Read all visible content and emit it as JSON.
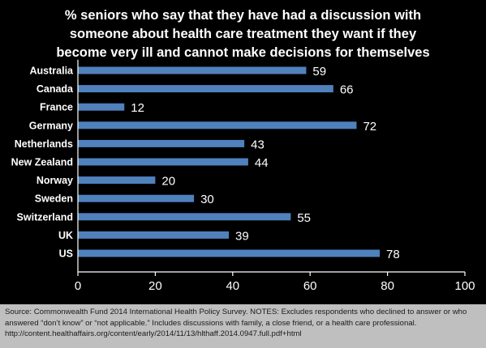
{
  "chart_data": {
    "type": "bar",
    "orientation": "horizontal",
    "title_lines": [
      "% seniors who say that they have had a discussion with",
      "someone about health care treatment they want if they",
      "become very ill and cannot make decisions for themselves"
    ],
    "categories": [
      "Australia",
      "Canada",
      "France",
      "Germany",
      "Netherlands",
      "New Zealand",
      "Norway",
      "Sweden",
      "Switzerland",
      "UK",
      "US"
    ],
    "values": [
      59,
      66,
      12,
      72,
      43,
      44,
      20,
      30,
      55,
      39,
      78
    ],
    "value_labels": [
      "59",
      "66",
      "12",
      "72",
      "43",
      "44",
      "20",
      "30",
      "55",
      "39",
      "78"
    ],
    "xlim": [
      0,
      100
    ],
    "x_ticks": [
      0,
      20,
      40,
      60,
      80,
      100
    ],
    "x_tick_labels": [
      "0",
      "20",
      "40",
      "60",
      "80",
      "100"
    ],
    "grid": false,
    "bar_color": "#4f81bd"
  },
  "footer": {
    "source_text": "Source: Commonwealth Fund 2014 International Health Policy Survey. NOTES: Excludes respondents who declined to answer or who answered “don’t know” or “not applicable.” Includes discussions with  family, a close friend, or a health care professional. http://content.healthaffairs.org/content/early/2014/11/13/hlthaff.2014.0947.full.pdf+html"
  },
  "colors": {
    "background": "#000000",
    "footer_background": "#bfbfbf",
    "text": "#ffffff"
  }
}
